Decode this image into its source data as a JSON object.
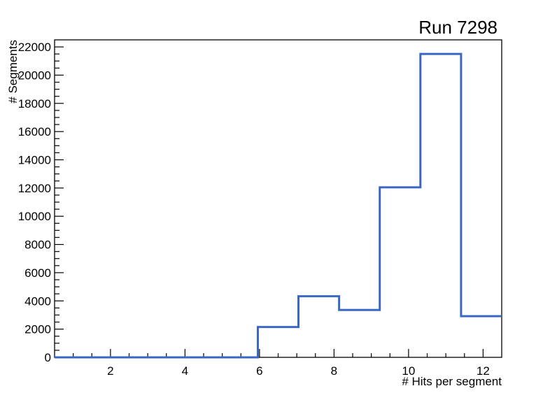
{
  "title": "Run 7298",
  "colors": {
    "histogram_line": "#3a67c6",
    "axis": "#000000",
    "background": "#ffffff"
  },
  "axes": {
    "x": {
      "label": "# Hits per segment",
      "min": 0.5,
      "max": 12.5,
      "major_tick_values": [
        2,
        4,
        6,
        8,
        10,
        12
      ],
      "tick_labels": [
        "2",
        "4",
        "6",
        "8",
        "10",
        "12"
      ],
      "minor_step": 0.5
    },
    "y": {
      "label": "# Segments",
      "min": 0,
      "max": 22500,
      "major_tick_values": [
        0,
        2000,
        4000,
        6000,
        8000,
        10000,
        12000,
        14000,
        16000,
        18000,
        20000,
        22000
      ],
      "tick_labels": [
        "0",
        "2000",
        "4000",
        "6000",
        "8000",
        "10000",
        "12000",
        "14000",
        "16000",
        "18000",
        "20000",
        "22000"
      ],
      "minor_step": 500
    }
  },
  "chart_data": {
    "type": "bar",
    "style": "step-histogram",
    "title": "Run 7298",
    "xlabel": "# Hits per segment",
    "ylabel": "# Segments",
    "xlim": [
      0.5,
      12.5
    ],
    "ylim": [
      0,
      22500
    ],
    "grid": false,
    "bin_edges": [
      0.5,
      1.591,
      2.682,
      3.773,
      4.864,
      5.955,
      7.045,
      8.136,
      9.227,
      10.318,
      11.409,
      12.5
    ],
    "counts": [
      0,
      0,
      0,
      0,
      0,
      2150,
      4330,
      3360,
      12050,
      21500,
      2920
    ]
  }
}
